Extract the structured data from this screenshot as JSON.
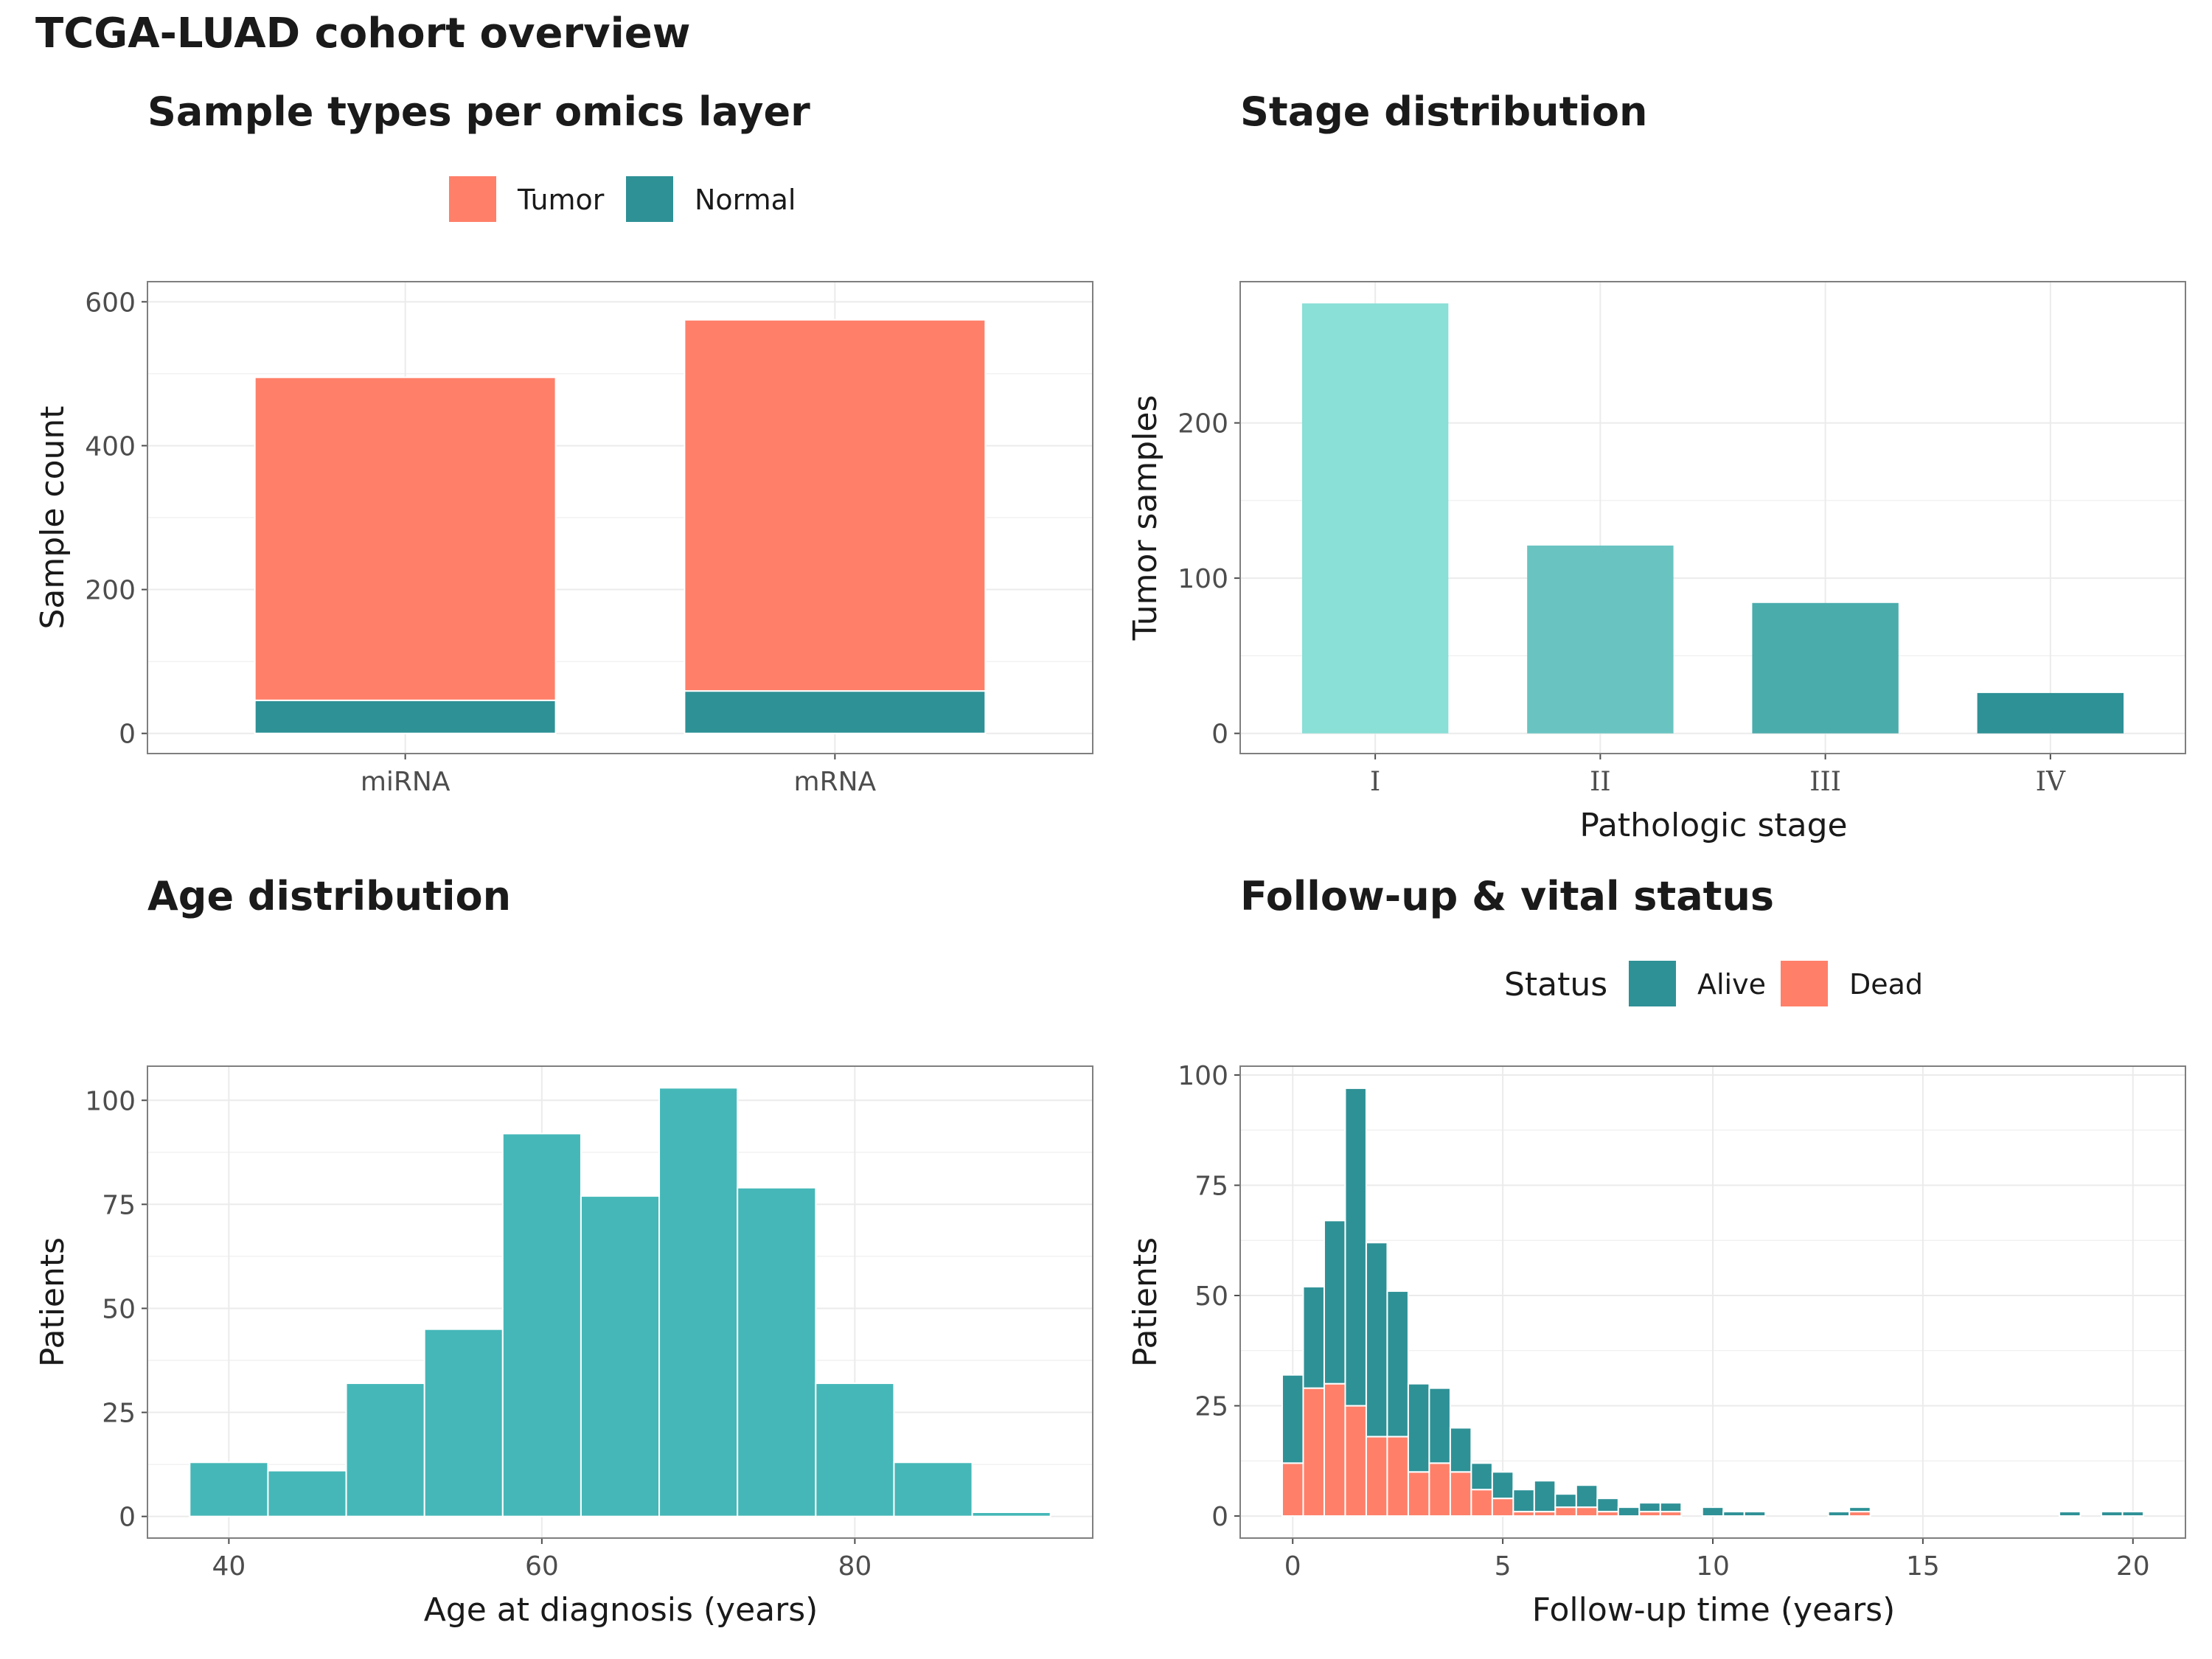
{
  "figure_title": "TCGA-LUAD cohort overview",
  "colors": {
    "tumor": "#FF7F69",
    "normal": "#2E9196",
    "alive": "#2E9196",
    "dead": "#FF7F69",
    "age": "#45B7B8",
    "stage": [
      "#8ADFD6",
      "#69C4C1",
      "#4BACAC",
      "#2E9196"
    ],
    "grid": "#EBEBEB",
    "panel_border": "#7F7F7F"
  },
  "chart_data": [
    {
      "type": "bar",
      "stacked": true,
      "title": "Sample types per omics layer",
      "xlabel": "",
      "ylabel": "Sample count",
      "categories": [
        "miRNA",
        "mRNA"
      ],
      "series": [
        {
          "name": "Tumor",
          "values": [
            449,
            516
          ]
        },
        {
          "name": "Normal",
          "values": [
            46,
            59
          ]
        }
      ],
      "ylim": [
        -28,
        628
      ],
      "yticks": [
        0,
        200,
        400,
        600
      ],
      "legend": [
        "Tumor",
        "Normal"
      ],
      "legend_position": "top",
      "grid": true
    },
    {
      "type": "bar",
      "title": "Stage distribution",
      "xlabel": "Pathologic stage",
      "ylabel": "Tumor samples",
      "categories": [
        "I",
        "II",
        "III",
        "IV"
      ],
      "values": [
        277,
        121,
        84,
        26
      ],
      "ylim": [
        -13,
        291
      ],
      "yticks": [
        0,
        100,
        200
      ],
      "grid": true
    },
    {
      "type": "bar",
      "histogram": true,
      "title": "Age distribution",
      "xlabel": "Age at diagnosis (years)",
      "ylabel": "Patients",
      "bins": [
        {
          "x0": 37.5,
          "x1": 42.5,
          "count": 13
        },
        {
          "x0": 42.5,
          "x1": 47.5,
          "count": 11
        },
        {
          "x0": 47.5,
          "x1": 52.5,
          "count": 32
        },
        {
          "x0": 52.5,
          "x1": 57.5,
          "count": 45
        },
        {
          "x0": 57.5,
          "x1": 62.5,
          "count": 92
        },
        {
          "x0": 62.5,
          "x1": 67.5,
          "count": 77
        },
        {
          "x0": 67.5,
          "x1": 72.5,
          "count": 103
        },
        {
          "x0": 72.5,
          "x1": 77.5,
          "count": 79
        },
        {
          "x0": 77.5,
          "x1": 82.5,
          "count": 32
        },
        {
          "x0": 82.5,
          "x1": 87.5,
          "count": 13
        },
        {
          "x0": 87.5,
          "x1": 92.5,
          "count": 1
        }
      ],
      "xlim": [
        34.8,
        95.2
      ],
      "xticks": [
        40,
        60,
        80
      ],
      "ylim": [
        -5.2,
        108.2
      ],
      "yticks": [
        0,
        25,
        50,
        75,
        100
      ],
      "grid": true
    },
    {
      "type": "bar",
      "histogram": true,
      "stacked": true,
      "title": "Follow-up & vital status",
      "xlabel": "Follow-up time (years)",
      "ylabel": "Patients",
      "legend_title": "Status",
      "legend": [
        "Alive",
        "Dead"
      ],
      "legend_position": "top",
      "bin_width": 0.5,
      "bin_centers": [
        0,
        0.5,
        1,
        1.5,
        2,
        2.5,
        3,
        3.5,
        4,
        4.5,
        5,
        5.5,
        6,
        6.5,
        7,
        7.5,
        8,
        8.5,
        9,
        9.5,
        10,
        10.5,
        11,
        11.5,
        12,
        12.5,
        13,
        13.5,
        14,
        14.5,
        15,
        15.5,
        16,
        16.5,
        17,
        17.5,
        18,
        18.5,
        19,
        19.5,
        20
      ],
      "series": [
        {
          "name": "Dead",
          "values": [
            12,
            29,
            30,
            25,
            18,
            18,
            10,
            12,
            10,
            6,
            4,
            1,
            1,
            2,
            2,
            1,
            0,
            1,
            1,
            0,
            0,
            0,
            0,
            0,
            0,
            0,
            0,
            1,
            0,
            0,
            0,
            0,
            0,
            0,
            0,
            0,
            0,
            0,
            0,
            0,
            0
          ]
        },
        {
          "name": "Alive",
          "values": [
            20,
            23,
            37,
            72,
            44,
            33,
            20,
            17,
            10,
            6,
            6,
            5,
            7,
            3,
            5,
            3,
            2,
            2,
            2,
            0,
            2,
            1,
            1,
            0,
            0,
            0,
            1,
            1,
            0,
            0,
            0,
            0,
            0,
            0,
            0,
            0,
            0,
            1,
            0,
            1,
            1
          ]
        }
      ],
      "xlim": [
        -1.25,
        21.25
      ],
      "xticks": [
        0,
        5,
        10,
        15,
        20
      ],
      "ylim": [
        -5,
        102
      ],
      "yticks": [
        0,
        25,
        50,
        75,
        100
      ],
      "grid": true
    }
  ]
}
